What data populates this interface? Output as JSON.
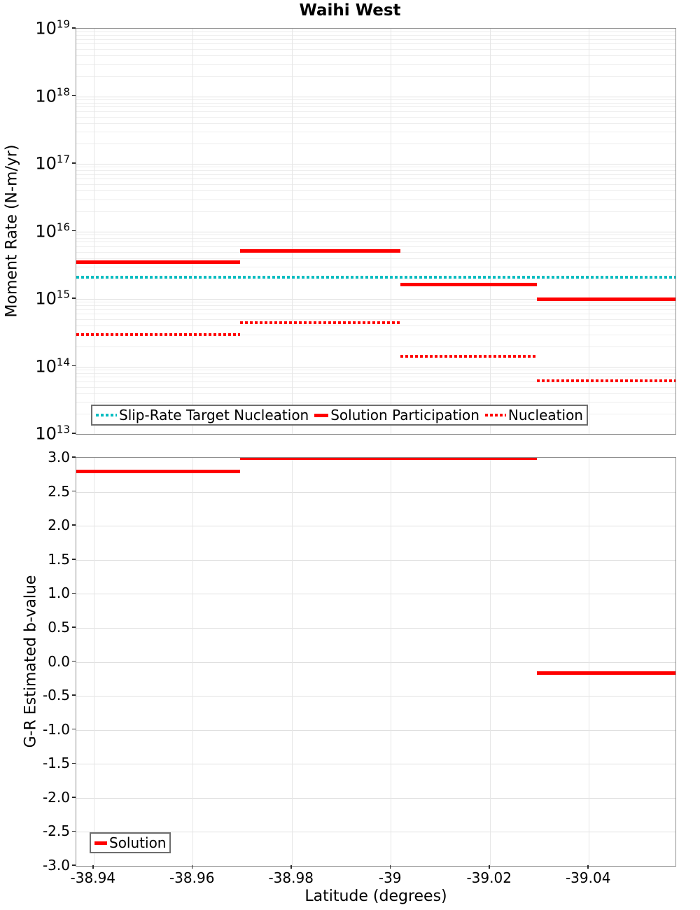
{
  "title": "Waihi West",
  "colors": {
    "red": "#ff0000",
    "teal": "#00bdc1",
    "grid_major": "#e0e0e0",
    "grid_minor": "#eeeeee",
    "grid_vertical": "#e6e6e6",
    "frame": "#8f8f8f",
    "tick": "#2a2a2a"
  },
  "x_axis": {
    "label": "Latitude (degrees)",
    "ticks": [
      {
        "value": -38.94,
        "label": "-38.94"
      },
      {
        "value": -38.96,
        "label": "-38.96"
      },
      {
        "value": -38.98,
        "label": "-38.98"
      },
      {
        "value": -39.0,
        "label": "-39"
      },
      {
        "value": -39.02,
        "label": "-39.02"
      },
      {
        "value": -39.04,
        "label": "-39.04"
      }
    ]
  },
  "moment_plot": {
    "ylabel": "Moment Rate (N-m/yr)",
    "ytick_exponents": [
      "19",
      "18",
      "17",
      "16",
      "15",
      "14",
      "13"
    ],
    "legend": [
      {
        "label": "Slip-Rate Target Nucleation",
        "style": "dotted",
        "color_key": "teal",
        "swatch_width": 30
      },
      {
        "label": "Solution Participation",
        "style": "solid",
        "color_key": "red",
        "swatch_width": 20
      },
      {
        "label": "Nucleation",
        "style": "dotted",
        "color_key": "red",
        "swatch_width": 30
      }
    ]
  },
  "bvalue_plot": {
    "ylabel": "G-R Estimated b-value",
    "ytick_labels": [
      "3.0",
      "2.5",
      "2.0",
      "1.5",
      "1.0",
      "0.5",
      "0.0",
      "-0.5",
      "-1.0",
      "-1.5",
      "-2.0",
      "-2.5",
      "-3.0"
    ],
    "legend": [
      {
        "label": "Solution",
        "style": "solid",
        "color_key": "red",
        "swatch_width": 18
      }
    ]
  },
  "chart_data": [
    {
      "type": "line",
      "title": "Waihi West",
      "xlabel": "Latitude (degrees)",
      "ylabel": "Moment Rate (N-m/yr)",
      "yscale": "log",
      "ylim": [
        10000000000000.0,
        1e+19
      ],
      "xlim": [
        -38.9365,
        -39.0575
      ],
      "grid": true,
      "legend_position": "lower left",
      "series": [
        {
          "name": "Slip-Rate Target Nucleation",
          "style": "dotted",
          "color": "#00bdc1",
          "segments": [
            {
              "x0": -38.9365,
              "x1": -39.0575,
              "y": 2100000000000000.0
            }
          ]
        },
        {
          "name": "Solution Participation",
          "style": "solid",
          "color": "#ff0000",
          "segments": [
            {
              "x0": -38.9365,
              "x1": -38.9695,
              "y": 3500000000000000.0
            },
            {
              "x0": -38.9695,
              "x1": -39.002,
              "y": 5100000000000000.0
            },
            {
              "x0": -39.002,
              "x1": -39.0295,
              "y": 1650000000000000.0
            },
            {
              "x0": -39.0295,
              "x1": -39.0575,
              "y": 980000000000000.0
            }
          ]
        },
        {
          "name": "Nucleation",
          "style": "dotted",
          "color": "#ff0000",
          "segments": [
            {
              "x0": -38.9365,
              "x1": -38.9695,
              "y": 300000000000000.0
            },
            {
              "x0": -38.9695,
              "x1": -39.002,
              "y": 440000000000000.0
            },
            {
              "x0": -39.002,
              "x1": -39.0295,
              "y": 140000000000000.0
            },
            {
              "x0": -39.0295,
              "x1": -39.0575,
              "y": 62000000000000.0
            }
          ]
        }
      ]
    },
    {
      "type": "line",
      "xlabel": "Latitude (degrees)",
      "ylabel": "G-R Estimated b-value",
      "yscale": "linear",
      "ylim": [
        -3.0,
        3.0
      ],
      "xlim": [
        -38.9365,
        -39.0575
      ],
      "grid": true,
      "legend_position": "lower left",
      "series": [
        {
          "name": "Solution",
          "style": "solid",
          "color": "#ff0000",
          "segments": [
            {
              "x0": -38.9365,
              "x1": -38.9695,
              "y": 2.8
            },
            {
              "x0": -38.9695,
              "x1": -39.0295,
              "y": 3.0
            },
            {
              "x0": -39.0295,
              "x1": -39.0575,
              "y": -0.16
            }
          ]
        }
      ]
    }
  ]
}
